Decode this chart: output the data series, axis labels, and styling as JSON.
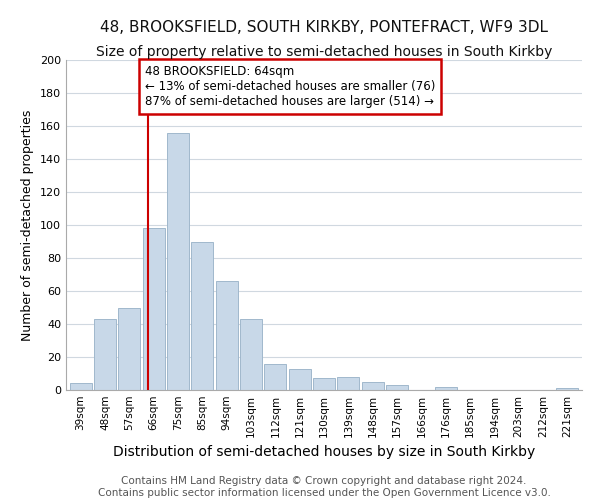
{
  "title": "48, BROOKSFIELD, SOUTH KIRKBY, PONTEFRACT, WF9 3DL",
  "subtitle": "Size of property relative to semi-detached houses in South Kirkby",
  "xlabel": "Distribution of semi-detached houses by size in South Kirkby",
  "ylabel": "Number of semi-detached properties",
  "footer_line1": "Contains HM Land Registry data © Crown copyright and database right 2024.",
  "footer_line2": "Contains public sector information licensed under the Open Government Licence v3.0.",
  "bar_labels": [
    "39sqm",
    "48sqm",
    "57sqm",
    "66sqm",
    "75sqm",
    "85sqm",
    "94sqm",
    "103sqm",
    "112sqm",
    "121sqm",
    "130sqm",
    "139sqm",
    "148sqm",
    "157sqm",
    "166sqm",
    "176sqm",
    "185sqm",
    "194sqm",
    "203sqm",
    "212sqm",
    "221sqm"
  ],
  "bar_values": [
    4,
    43,
    50,
    98,
    156,
    90,
    66,
    43,
    16,
    13,
    7,
    8,
    5,
    3,
    0,
    2,
    0,
    0,
    0,
    0,
    1
  ],
  "bar_color": "#c8d8e8",
  "bar_edge_color": "#a0b8cc",
  "grid_color": "#d0d8e0",
  "annotation_line1": "48 BROOKSFIELD: 64sqm",
  "annotation_line2": "← 13% of semi-detached houses are smaller (76)",
  "annotation_line3": "87% of semi-detached houses are larger (514) →",
  "ylim": [
    0,
    200
  ],
  "yticks": [
    0,
    20,
    40,
    60,
    80,
    100,
    120,
    140,
    160,
    180,
    200
  ],
  "background_color": "#ffffff",
  "annotation_box_color": "#ffffff",
  "annotation_box_edge_color": "#cc0000",
  "property_line_color": "#cc0000",
  "title_fontsize": 11,
  "subtitle_fontsize": 10,
  "xlabel_fontsize": 10,
  "ylabel_fontsize": 9,
  "tick_fontsize": 7.5,
  "footer_fontsize": 7.5,
  "annotation_fontsize": 8.5
}
